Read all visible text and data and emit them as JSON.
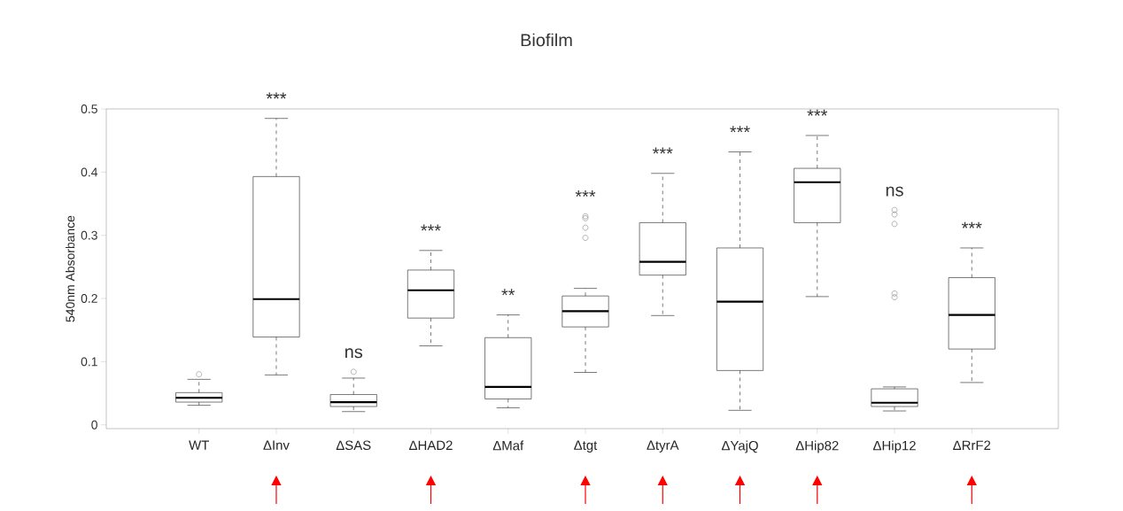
{
  "chart_data": {
    "type": "box",
    "title": "Biofilm",
    "ylabel": "540nm Absorbance",
    "categories": [
      "WT",
      "ΔInv",
      "ΔSAS",
      "ΔHAD2",
      "ΔMaf",
      "Δtgt",
      "ΔtyrA",
      "ΔYajQ",
      "ΔHip82",
      "ΔHip12",
      "ΔRrF2"
    ],
    "boxes": [
      {
        "low": 0.031,
        "q1": 0.036,
        "median": 0.043,
        "q3": 0.051,
        "high": 0.072,
        "outliers": [
          0.08
        ]
      },
      {
        "low": 0.079,
        "q1": 0.139,
        "median": 0.199,
        "q3": 0.393,
        "high": 0.485
      },
      {
        "low": 0.021,
        "q1": 0.029,
        "median": 0.036,
        "q3": 0.048,
        "high": 0.074,
        "outliers": [
          0.084
        ]
      },
      {
        "low": 0.125,
        "q1": 0.169,
        "median": 0.213,
        "q3": 0.245,
        "high": 0.276
      },
      {
        "low": 0.027,
        "q1": 0.041,
        "median": 0.06,
        "q3": 0.138,
        "high": 0.174
      },
      {
        "low": 0.083,
        "q1": 0.155,
        "median": 0.18,
        "q3": 0.204,
        "high": 0.216,
        "outliers": [
          0.33,
          0.327,
          0.312,
          0.296
        ]
      },
      {
        "low": 0.173,
        "q1": 0.237,
        "median": 0.258,
        "q3": 0.32,
        "high": 0.398
      },
      {
        "low": 0.023,
        "q1": 0.086,
        "median": 0.195,
        "q3": 0.28,
        "high": 0.432
      },
      {
        "low": 0.203,
        "q1": 0.32,
        "median": 0.384,
        "q3": 0.406,
        "high": 0.458
      },
      {
        "low": 0.022,
        "q1": 0.029,
        "median": 0.035,
        "q3": 0.057,
        "high": 0.06,
        "outliers": [
          0.34,
          0.333,
          0.318,
          0.208,
          0.202
        ]
      },
      {
        "low": 0.067,
        "q1": 0.12,
        "median": 0.174,
        "q3": 0.233,
        "high": 0.28
      }
    ],
    "ylim": [
      -0.006,
      0.5
    ],
    "yticks": [
      0,
      0.1,
      0.2,
      0.3,
      0.4,
      0.5
    ],
    "annotations": [
      {
        "text": "***",
        "x": "ΔInv",
        "y": 0.485
      },
      {
        "text": "ns",
        "x": "ΔSAS",
        "y": 0.074
      },
      {
        "text": "***",
        "x": "ΔHAD2",
        "y": 0.276
      },
      {
        "text": "**",
        "x": "ΔMaf",
        "y": 0.174
      },
      "***",
      {
        "text": "***",
        "x": "ΔtyrA",
        "y": 0.398
      },
      {
        "text": "***",
        "x": "ΔYajQ",
        "y": 0.432
      },
      {
        "text": "***",
        "x": "ΔHip82",
        "y": 0.458
      },
      "ns",
      {
        "text": "***",
        "x": "ΔRrF2",
        "y": 0.28
      }
    ]
  }
}
